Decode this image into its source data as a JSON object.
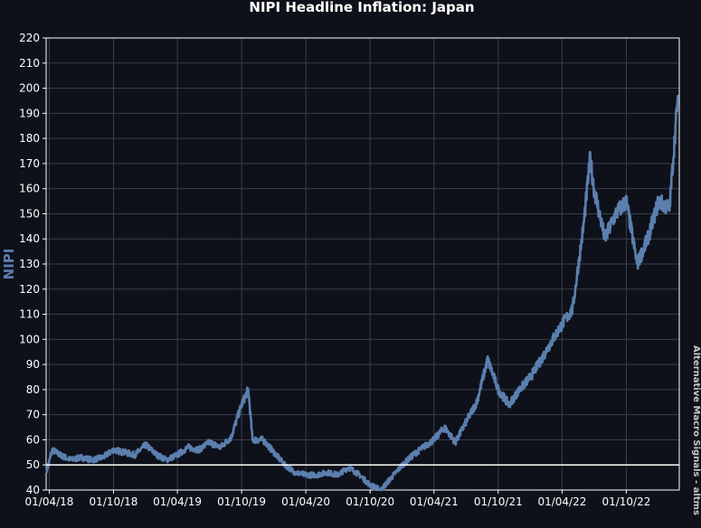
{
  "chart_data": {
    "type": "line",
    "title": "NIPI Headline Inflation: Japan",
    "xlabel": "",
    "ylabel": "NIPI",
    "ylim": [
      40,
      220
    ],
    "yticks": [
      40,
      50,
      60,
      70,
      80,
      90,
      100,
      110,
      120,
      130,
      140,
      150,
      160,
      170,
      180,
      190,
      200,
      210,
      220
    ],
    "xlim": [
      "2018-03-23",
      "2023-03-01"
    ],
    "xticks": [
      {
        "date": "2018-04-01",
        "label": "01/04/18"
      },
      {
        "date": "2018-10-01",
        "label": "01/10/18"
      },
      {
        "date": "2019-04-01",
        "label": "01/04/19"
      },
      {
        "date": "2019-10-01",
        "label": "01/10/19"
      },
      {
        "date": "2020-04-01",
        "label": "01/04/20"
      },
      {
        "date": "2020-10-01",
        "label": "01/10/20"
      },
      {
        "date": "2021-04-01",
        "label": "01/04/21"
      },
      {
        "date": "2021-10-01",
        "label": "01/10/21"
      },
      {
        "date": "2022-04-01",
        "label": "01/04/22"
      },
      {
        "date": "2022-10-01",
        "label": "01/10/22"
      }
    ],
    "grid": true,
    "reference_line": {
      "y": 50,
      "color": "#ffffff"
    },
    "series": [
      {
        "color": "#5b7fae",
        "x": [
          "2018-03-25",
          "2018-04-10",
          "2018-05-01",
          "2018-06-01",
          "2018-07-01",
          "2018-08-01",
          "2018-09-01",
          "2018-10-01",
          "2018-11-01",
          "2018-12-01",
          "2019-01-01",
          "2019-02-01",
          "2019-03-01",
          "2019-04-01",
          "2019-05-01",
          "2019-06-01",
          "2019-07-01",
          "2019-08-01",
          "2019-09-01",
          "2019-10-01",
          "2019-10-20",
          "2019-11-01",
          "2019-12-01",
          "2020-01-01",
          "2020-02-01",
          "2020-03-01",
          "2020-04-01",
          "2020-05-01",
          "2020-06-01",
          "2020-07-01",
          "2020-08-01",
          "2020-09-01",
          "2020-10-01",
          "2020-11-01",
          "2020-12-01",
          "2021-01-01",
          "2021-02-01",
          "2021-03-01",
          "2021-04-01",
          "2021-05-01",
          "2021-06-01",
          "2021-07-01",
          "2021-08-01",
          "2021-09-01",
          "2021-10-01",
          "2021-11-01",
          "2021-12-01",
          "2022-01-01",
          "2022-02-01",
          "2022-03-01",
          "2022-04-01",
          "2022-05-01",
          "2022-06-01",
          "2022-06-20",
          "2022-07-01",
          "2022-08-01",
          "2022-09-01",
          "2022-10-01",
          "2022-11-01",
          "2022-12-01",
          "2023-01-01",
          "2023-02-01",
          "2023-02-25"
        ],
        "y": [
          48,
          56,
          54,
          52,
          53,
          52,
          53,
          56,
          55,
          54,
          58,
          54,
          52,
          54,
          57,
          56,
          59,
          57,
          61,
          74,
          80,
          60,
          60,
          55,
          50,
          47,
          46,
          46,
          47,
          46,
          49,
          46,
          42,
          40,
          45,
          50,
          54,
          57,
          60,
          65,
          59,
          67,
          75,
          92,
          80,
          74,
          80,
          85,
          92,
          99,
          106,
          112,
          145,
          172,
          160,
          140,
          150,
          155,
          130,
          140,
          155,
          152,
          197
        ]
      }
    ]
  },
  "watermark": "Alternative Macro Signals - altms"
}
